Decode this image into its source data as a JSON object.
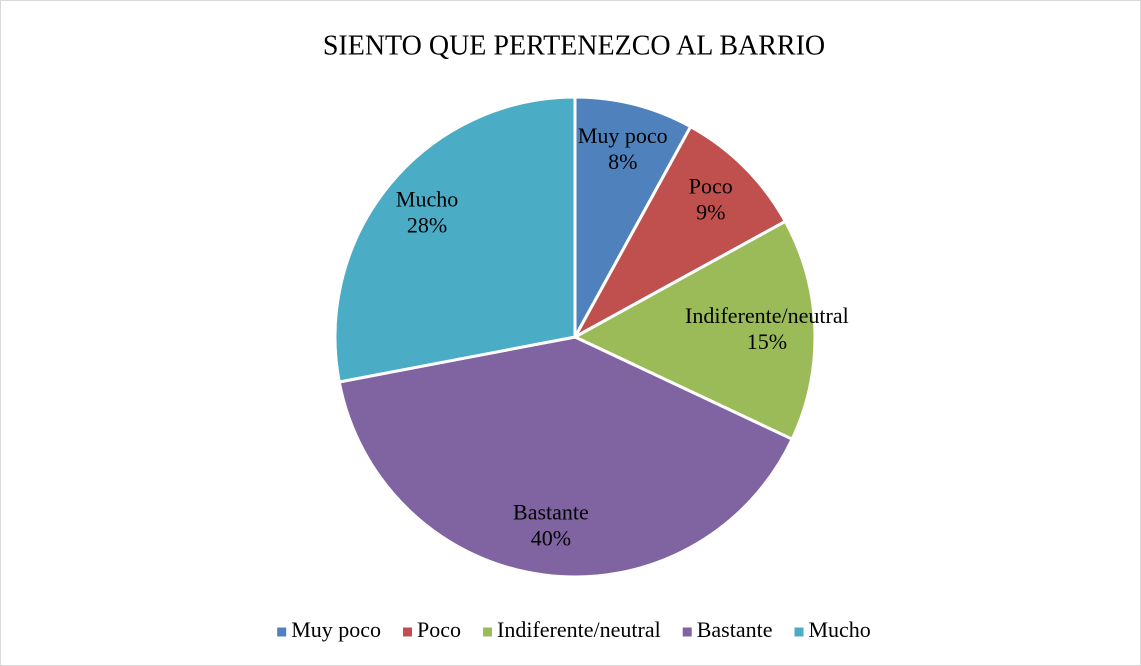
{
  "chart_data": {
    "type": "pie",
    "title": "SIENTO QUE PERTENEZCO AL BARRIO",
    "categories": [
      "Muy poco",
      "Poco",
      "Indiferente/neutral",
      "Bastante",
      "Mucho"
    ],
    "values": [
      8,
      9,
      15,
      40,
      28
    ],
    "value_labels": [
      "8%",
      "9%",
      "15%",
      "40%",
      "28%"
    ],
    "colors": [
      "#4f81bd",
      "#c0504d",
      "#9bbb59",
      "#8064a2",
      "#4bacc6"
    ],
    "legend": "bottom"
  }
}
